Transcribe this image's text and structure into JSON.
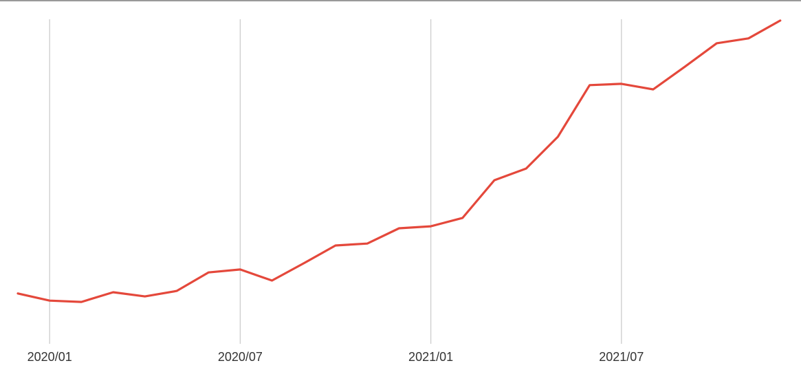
{
  "chart_data": {
    "type": "line",
    "x": [
      "2019/12",
      "2020/01",
      "2020/02",
      "2020/03",
      "2020/04",
      "2020/05",
      "2020/06",
      "2020/07",
      "2020/08",
      "2020/09",
      "2020/10",
      "2020/11",
      "2020/12",
      "2021/01",
      "2021/02",
      "2021/03",
      "2021/04",
      "2021/05",
      "2021/06",
      "2021/07",
      "2021/08",
      "2021/09",
      "2021/10",
      "2021/11",
      "2021/12"
    ],
    "values": [
      15.5,
      13.3,
      12.9,
      15.9,
      14.6,
      16.3,
      22.0,
      22.9,
      19.5,
      24.8,
      30.3,
      30.9,
      35.6,
      36.2,
      38.8,
      50.4,
      54.0,
      63.8,
      79.7,
      80.1,
      78.4,
      85.4,
      92.6,
      94.1,
      99.6
    ],
    "x_tick_labels": [
      "2020/01",
      "2020/07",
      "2021/01",
      "2021/07"
    ],
    "ylim": [
      0,
      100
    ],
    "y_scale_note": "relative 0-100 scale; no y-axis tick labels are visible in the chart",
    "grid": "vertical gridlines at labeled x ticks only",
    "legend": "none",
    "colors": {
      "line": "#e4483b",
      "gridline": "#cfcfcf",
      "axis_label": "#333333",
      "top_border": "#999999",
      "background": "#ffffff"
    }
  }
}
